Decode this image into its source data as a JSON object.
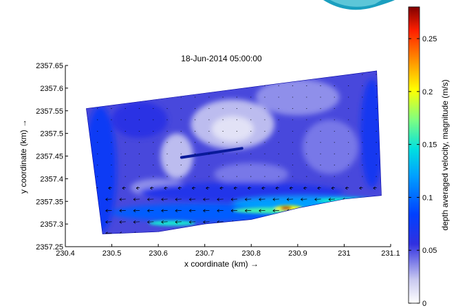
{
  "chart_data": {
    "type": "heatmap",
    "title": "18-Jun-2014 05:00:00",
    "xlabel": "x coordinate (km) →",
    "ylabel": "y coordinate (km) →",
    "xlim": [
      230.4,
      231.1
    ],
    "ylim": [
      2357.25,
      2357.65
    ],
    "x_ticks": [
      "230.4",
      "230.5",
      "230.6",
      "230.7",
      "230.8",
      "230.9",
      "231",
      "231.1"
    ],
    "y_ticks": [
      "2357.25",
      "2357.3",
      "2357.35",
      "2357.4",
      "2357.45",
      "2357.5",
      "2357.55",
      "2357.6",
      "2357.65"
    ],
    "colorbar": {
      "label": "depth averaged velocity, magnitude (m/s)",
      "range": [
        0,
        0.28
      ],
      "ticks": [
        "0",
        "0.05",
        "0.1",
        "0.15",
        "0.2",
        "0.25"
      ],
      "colormap": "jet"
    },
    "domain_outline": [
      [
        230.445,
        2357.555
      ],
      [
        231.07,
        2357.638
      ],
      [
        231.08,
        2357.363
      ],
      [
        231.0,
        2357.355
      ],
      [
        230.9,
        2357.335
      ],
      [
        230.8,
        2357.31
      ],
      [
        230.7,
        2357.3
      ],
      [
        230.6,
        2357.283
      ],
      [
        230.48,
        2357.278
      ]
    ],
    "features": [
      {
        "name": "low-velocity eddy",
        "x": 230.76,
        "y": 2357.51,
        "value": 0.0
      },
      {
        "name": "channel jet",
        "x": 230.875,
        "y": 2357.335,
        "value": 0.28
      },
      {
        "name": "inner obstruction",
        "x_from": 230.65,
        "x_to": 230.78,
        "y": 2357.455
      }
    ],
    "vector_field": {
      "quantity": "depth averaged velocity",
      "dominant_direction": "westward along southern boundary"
    },
    "grid": false
  }
}
